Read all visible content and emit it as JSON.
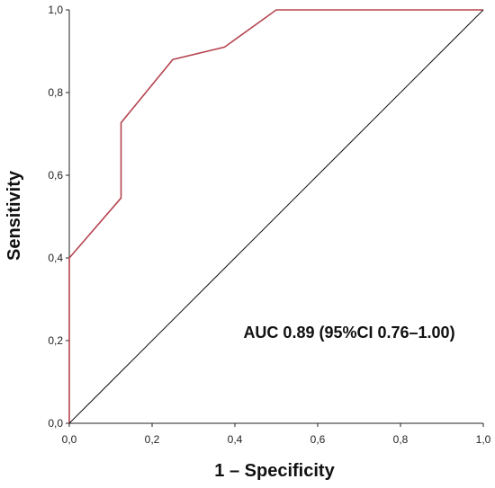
{
  "chart_data": {
    "type": "line",
    "title": "",
    "xlabel": "1 – Specificity",
    "ylabel": "Sensitivity",
    "xlim": [
      0,
      1
    ],
    "ylim": [
      0,
      1
    ],
    "x_ticks": [
      "0,0",
      "0,2",
      "0,4",
      "0,6",
      "0,8",
      "1,0"
    ],
    "y_ticks": [
      "0,0",
      "0,2",
      "0,4",
      "0,6",
      "0,8",
      "1,0"
    ],
    "grid": false,
    "annotation": "AUC 0.89 (95%CI 0.76–1.00)",
    "series": [
      {
        "color": "#b5444f",
        "x": [
          0,
          0,
          0.125,
          0.125,
          0.25,
          0.375,
          0.5,
          1
        ],
        "y": [
          0,
          0.4,
          0.545,
          0.727,
          0.88,
          0.91,
          1,
          1
        ]
      },
      {
        "color": "#111111",
        "x": [
          0,
          1
        ],
        "y": [
          0,
          1
        ]
      }
    ]
  }
}
